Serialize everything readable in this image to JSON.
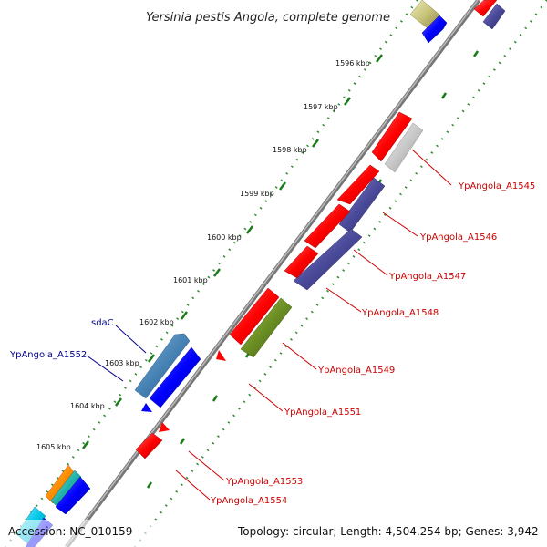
{
  "title": "Yersinia pestis Angola, complete genome",
  "footer": {
    "accession": "Accession: NC_010159",
    "summary": "Topology: circular; Length: 4,504,254 bp; Genes: 3,942"
  },
  "colors": {
    "backbone": "#888888",
    "tick_dots": "#2d8c2d",
    "forward_label": "#00008b",
    "reverse_label": "#cc0000",
    "red": "#ff0000",
    "navy": "#4a4a9a",
    "blue": "#0000ff",
    "gray": "#c8c8c8",
    "olive": "#6b8e23",
    "steel": "#4682b4",
    "khaki": "#c8c47a",
    "orange": "#ff8c00",
    "cyan": "#00c8e6",
    "teal": "#20b2aa"
  },
  "scale_labels": [
    "1596 kbp",
    "1597 kbp",
    "1598 kbp",
    "1599 kbp",
    "1600 kbp",
    "1601 kbp",
    "1602 kbp",
    "1603 kbp",
    "1604 kbp",
    "1605 kbp"
  ],
  "gene_labels": [
    {
      "text": "sdaC",
      "strand": "forward"
    },
    {
      "text": "YpAngola_A1552",
      "strand": "forward"
    },
    {
      "text": "YpAngola_A1545",
      "strand": "reverse"
    },
    {
      "text": "YpAngola_A1546",
      "strand": "reverse"
    },
    {
      "text": "YpAngola_A1547",
      "strand": "reverse"
    },
    {
      "text": "YpAngola_A1548",
      "strand": "reverse"
    },
    {
      "text": "YpAngola_A1549",
      "strand": "reverse"
    },
    {
      "text": "YpAngola_A1551",
      "strand": "reverse"
    },
    {
      "text": "YpAngola_A1553",
      "strand": "reverse"
    },
    {
      "text": "YpAngola_A1554",
      "strand": "reverse"
    }
  ]
}
